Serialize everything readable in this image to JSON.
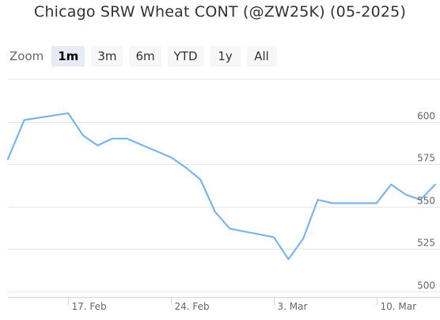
{
  "title": "Chicago SRW Wheat CONT (@ZW25K) (05-2025)",
  "zoom": {
    "label": "Zoom",
    "buttons": [
      {
        "label": "1m",
        "active": true
      },
      {
        "label": "3m",
        "active": false
      },
      {
        "label": "6m",
        "active": false
      },
      {
        "label": "YTD",
        "active": false
      },
      {
        "label": "1y",
        "active": false
      },
      {
        "label": "All",
        "active": false
      }
    ]
  },
  "colors": {
    "line": "#7cb5ec",
    "grid": "#e6e6e6",
    "axis": "#ccd6eb"
  },
  "chart_data": {
    "type": "line",
    "series": [
      {
        "x": [
          "2025-02-13",
          "2025-02-14",
          "2025-02-17",
          "2025-02-18",
          "2025-02-19",
          "2025-02-20",
          "2025-02-21",
          "2025-02-24",
          "2025-02-25",
          "2025-02-26",
          "2025-02-27",
          "2025-02-28",
          "2025-03-03",
          "2025-03-04",
          "2025-03-05",
          "2025-03-06",
          "2025-03-07",
          "2025-03-10",
          "2025-03-11",
          "2025-03-12",
          "2025-03-13",
          "2025-03-14"
        ],
        "values": [
          578,
          601,
          605,
          592,
          586,
          590,
          590,
          579,
          573,
          566,
          547,
          537,
          532,
          519,
          531,
          554,
          552,
          552,
          563,
          557,
          554,
          563
        ]
      }
    ],
    "x_ticks": [
      "17. Feb",
      "24. Feb",
      "3. Mar",
      "10. Mar"
    ],
    "x_tick_dates": [
      "2025-02-17",
      "2025-02-24",
      "2025-03-03",
      "2025-03-10"
    ],
    "y_ticks": [
      500,
      525,
      550,
      575,
      600
    ],
    "ylim": [
      500,
      625
    ],
    "grid": true,
    "y_axis_side": "right"
  }
}
